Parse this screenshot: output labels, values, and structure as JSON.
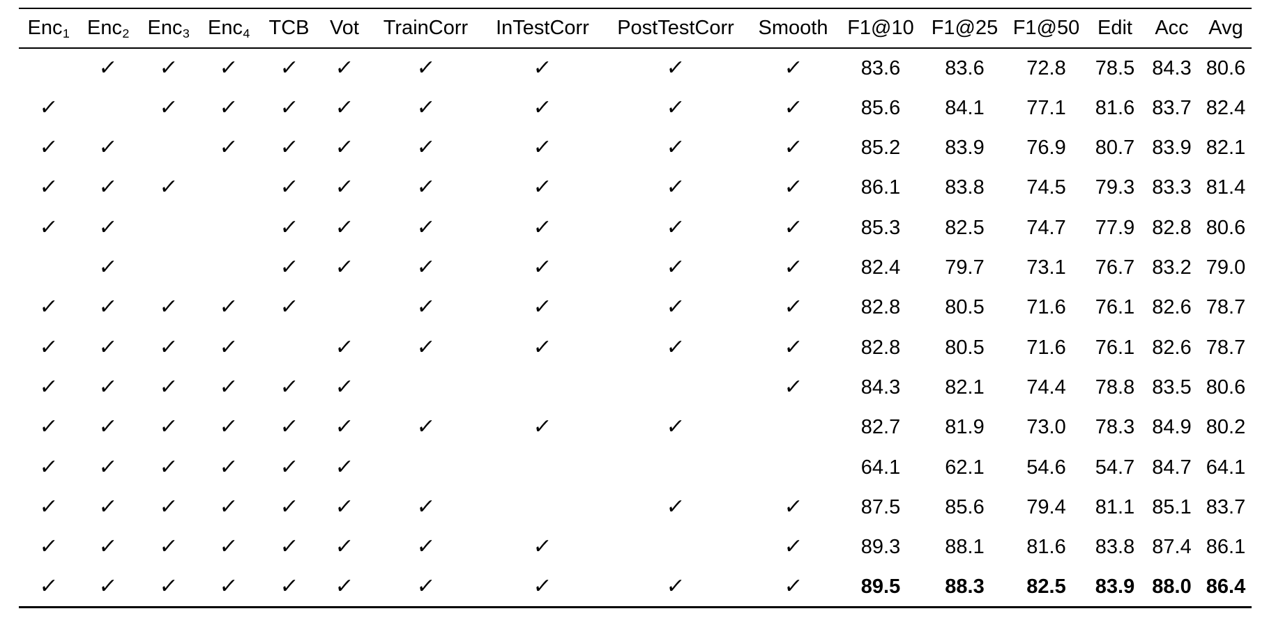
{
  "page": {
    "background": "#ffffff",
    "text_color": "#000000",
    "check_glyph": "✓"
  },
  "table": {
    "headers": [
      {
        "text": "Enc",
        "sub": "1"
      },
      {
        "text": "Enc",
        "sub": "2"
      },
      {
        "text": "Enc",
        "sub": "3"
      },
      {
        "text": "Enc",
        "sub": "4"
      },
      {
        "text": "TCB",
        "sub": ""
      },
      {
        "text": "Vot",
        "sub": ""
      },
      {
        "text": "TrainCorr",
        "sub": ""
      },
      {
        "text": "InTestCorr",
        "sub": ""
      },
      {
        "text": "PostTestCorr",
        "sub": ""
      },
      {
        "text": "Smooth",
        "sub": ""
      },
      {
        "text": "F1@10",
        "sub": ""
      },
      {
        "text": "F1@25",
        "sub": ""
      },
      {
        "text": "F1@50",
        "sub": ""
      },
      {
        "text": "Edit",
        "sub": ""
      },
      {
        "text": "Acc",
        "sub": ""
      },
      {
        "text": "Avg",
        "sub": ""
      }
    ],
    "rows": [
      {
        "checks": [
          false,
          true,
          true,
          true,
          true,
          true,
          true,
          true,
          true,
          true
        ],
        "values": [
          "83.6",
          "83.6",
          "72.8",
          "78.5",
          "84.3",
          "80.6"
        ],
        "bold": false
      },
      {
        "checks": [
          true,
          false,
          true,
          true,
          true,
          true,
          true,
          true,
          true,
          true
        ],
        "values": [
          "85.6",
          "84.1",
          "77.1",
          "81.6",
          "83.7",
          "82.4"
        ],
        "bold": false
      },
      {
        "checks": [
          true,
          true,
          false,
          true,
          true,
          true,
          true,
          true,
          true,
          true
        ],
        "values": [
          "85.2",
          "83.9",
          "76.9",
          "80.7",
          "83.9",
          "82.1"
        ],
        "bold": false
      },
      {
        "checks": [
          true,
          true,
          true,
          false,
          true,
          true,
          true,
          true,
          true,
          true
        ],
        "values": [
          "86.1",
          "83.8",
          "74.5",
          "79.3",
          "83.3",
          "81.4"
        ],
        "bold": false
      },
      {
        "checks": [
          true,
          true,
          false,
          false,
          true,
          true,
          true,
          true,
          true,
          true
        ],
        "values": [
          "85.3",
          "82.5",
          "74.7",
          "77.9",
          "82.8",
          "80.6"
        ],
        "bold": false
      },
      {
        "checks": [
          false,
          true,
          false,
          false,
          true,
          true,
          true,
          true,
          true,
          true
        ],
        "values": [
          "82.4",
          "79.7",
          "73.1",
          "76.7",
          "83.2",
          "79.0"
        ],
        "bold": false
      },
      {
        "checks": [
          true,
          true,
          true,
          true,
          true,
          false,
          true,
          true,
          true,
          true
        ],
        "values": [
          "82.8",
          "80.5",
          "71.6",
          "76.1",
          "82.6",
          "78.7"
        ],
        "bold": false
      },
      {
        "checks": [
          true,
          true,
          true,
          true,
          false,
          true,
          true,
          true,
          true,
          true
        ],
        "values": [
          "82.8",
          "80.5",
          "71.6",
          "76.1",
          "82.6",
          "78.7"
        ],
        "bold": false
      },
      {
        "checks": [
          true,
          true,
          true,
          true,
          true,
          true,
          false,
          false,
          false,
          true
        ],
        "values": [
          "84.3",
          "82.1",
          "74.4",
          "78.8",
          "83.5",
          "80.6"
        ],
        "bold": false
      },
      {
        "checks": [
          true,
          true,
          true,
          true,
          true,
          true,
          true,
          true,
          true,
          false
        ],
        "values": [
          "82.7",
          "81.9",
          "73.0",
          "78.3",
          "84.9",
          "80.2"
        ],
        "bold": false
      },
      {
        "checks": [
          true,
          true,
          true,
          true,
          true,
          true,
          false,
          false,
          false,
          false
        ],
        "values": [
          "64.1",
          "62.1",
          "54.6",
          "54.7",
          "84.7",
          "64.1"
        ],
        "bold": false
      },
      {
        "checks": [
          true,
          true,
          true,
          true,
          true,
          true,
          true,
          false,
          true,
          true
        ],
        "values": [
          "87.5",
          "85.6",
          "79.4",
          "81.1",
          "85.1",
          "83.7"
        ],
        "bold": false
      },
      {
        "checks": [
          true,
          true,
          true,
          true,
          true,
          true,
          true,
          true,
          false,
          true
        ],
        "values": [
          "89.3",
          "88.1",
          "81.6",
          "83.8",
          "87.4",
          "86.1"
        ],
        "bold": false
      },
      {
        "checks": [
          true,
          true,
          true,
          true,
          true,
          true,
          true,
          true,
          true,
          true
        ],
        "values": [
          "89.5",
          "88.3",
          "82.5",
          "83.9",
          "88.0",
          "86.4"
        ],
        "bold": true
      }
    ]
  }
}
